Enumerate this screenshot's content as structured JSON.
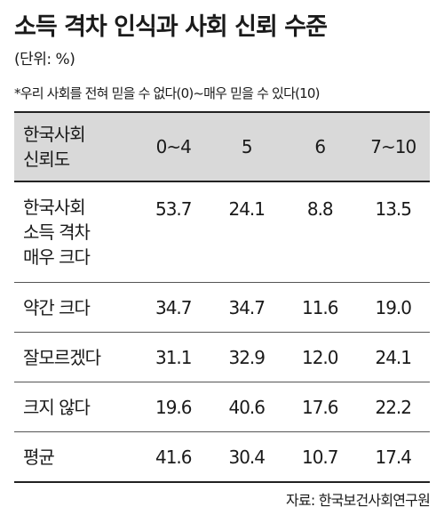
{
  "title": "소득 격차 인식과 사회 신뢰 수준",
  "unit": "(단위: %)",
  "note": "*우리 사회를 전혀 믿을 수 없다(0)~매우 믿을 수 있다(10)",
  "table": {
    "header": {
      "label_lines": [
        "한국사회",
        "신뢰도"
      ],
      "columns": [
        "0~4",
        "5",
        "6",
        "7~10"
      ]
    },
    "rows": [
      {
        "label_lines": [
          "한국사회",
          "소득 격차",
          "매우 크다"
        ],
        "values": [
          "53.7",
          "24.1",
          "8.8",
          "13.5"
        ]
      },
      {
        "label_lines": [
          "약간 크다"
        ],
        "values": [
          "34.7",
          "34.7",
          "11.6",
          "19.0"
        ]
      },
      {
        "label_lines": [
          "잘모르겠다"
        ],
        "values": [
          "31.1",
          "32.9",
          "12.0",
          "24.1"
        ]
      },
      {
        "label_lines": [
          "크지 않다"
        ],
        "values": [
          "19.6",
          "40.6",
          "17.6",
          "22.2"
        ]
      },
      {
        "label_lines": [
          "평균"
        ],
        "values": [
          "41.6",
          "30.4",
          "10.7",
          "17.4"
        ]
      }
    ]
  },
  "source": "자료: 한국보건사회연구원"
}
